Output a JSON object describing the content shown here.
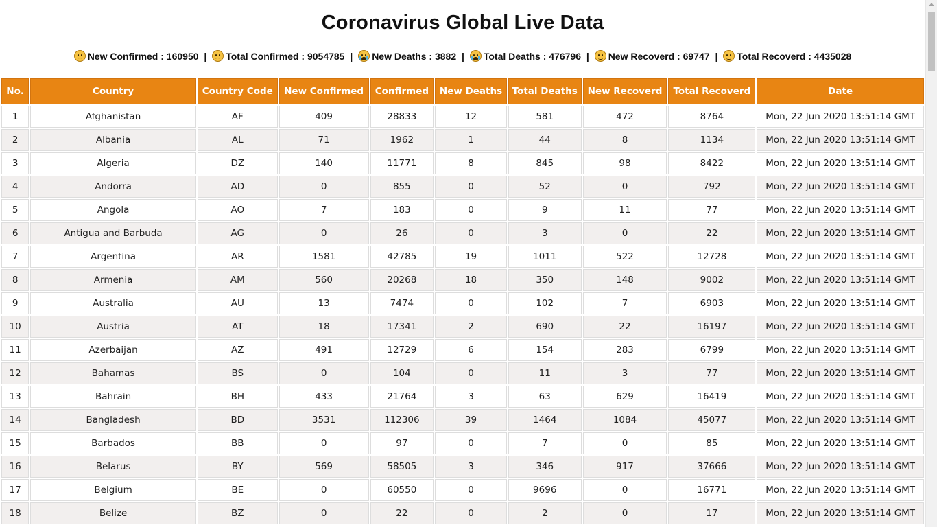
{
  "page": {
    "title": "Coronavirus Global Live Data"
  },
  "summary": {
    "items": [
      {
        "icon": "sad-face-icon",
        "label": "New Confirmed : 160950"
      },
      {
        "icon": "sad-face-icon",
        "label": "Total Confirmed : 9054785"
      },
      {
        "icon": "crying-face-icon",
        "label": "New Deaths : 3882"
      },
      {
        "icon": "crying-face-icon",
        "label": "Total Deaths : 476796"
      },
      {
        "icon": "smiling-face-icon",
        "label": "New Recoverd : 69747"
      },
      {
        "icon": "smiling-face-icon",
        "label": "Total Recoverd : 4435028"
      }
    ],
    "separator": "|"
  },
  "table": {
    "headers": [
      "No.",
      "Country",
      "Country Code",
      "New Confirmed",
      "Confirmed",
      "New Deaths",
      "Total Deaths",
      "New Recoverd",
      "Total Recoverd",
      "Date"
    ],
    "rows": [
      [
        "1",
        "Afghanistan",
        "AF",
        "409",
        "28833",
        "12",
        "581",
        "472",
        "8764",
        "Mon, 22 Jun 2020 13:51:14 GMT"
      ],
      [
        "2",
        "Albania",
        "AL",
        "71",
        "1962",
        "1",
        "44",
        "8",
        "1134",
        "Mon, 22 Jun 2020 13:51:14 GMT"
      ],
      [
        "3",
        "Algeria",
        "DZ",
        "140",
        "11771",
        "8",
        "845",
        "98",
        "8422",
        "Mon, 22 Jun 2020 13:51:14 GMT"
      ],
      [
        "4",
        "Andorra",
        "AD",
        "0",
        "855",
        "0",
        "52",
        "0",
        "792",
        "Mon, 22 Jun 2020 13:51:14 GMT"
      ],
      [
        "5",
        "Angola",
        "AO",
        "7",
        "183",
        "0",
        "9",
        "11",
        "77",
        "Mon, 22 Jun 2020 13:51:14 GMT"
      ],
      [
        "6",
        "Antigua and Barbuda",
        "AG",
        "0",
        "26",
        "0",
        "3",
        "0",
        "22",
        "Mon, 22 Jun 2020 13:51:14 GMT"
      ],
      [
        "7",
        "Argentina",
        "AR",
        "1581",
        "42785",
        "19",
        "1011",
        "522",
        "12728",
        "Mon, 22 Jun 2020 13:51:14 GMT"
      ],
      [
        "8",
        "Armenia",
        "AM",
        "560",
        "20268",
        "18",
        "350",
        "148",
        "9002",
        "Mon, 22 Jun 2020 13:51:14 GMT"
      ],
      [
        "9",
        "Australia",
        "AU",
        "13",
        "7474",
        "0",
        "102",
        "7",
        "6903",
        "Mon, 22 Jun 2020 13:51:14 GMT"
      ],
      [
        "10",
        "Austria",
        "AT",
        "18",
        "17341",
        "2",
        "690",
        "22",
        "16197",
        "Mon, 22 Jun 2020 13:51:14 GMT"
      ],
      [
        "11",
        "Azerbaijan",
        "AZ",
        "491",
        "12729",
        "6",
        "154",
        "283",
        "6799",
        "Mon, 22 Jun 2020 13:51:14 GMT"
      ],
      [
        "12",
        "Bahamas",
        "BS",
        "0",
        "104",
        "0",
        "11",
        "3",
        "77",
        "Mon, 22 Jun 2020 13:51:14 GMT"
      ],
      [
        "13",
        "Bahrain",
        "BH",
        "433",
        "21764",
        "3",
        "63",
        "629",
        "16419",
        "Mon, 22 Jun 2020 13:51:14 GMT"
      ],
      [
        "14",
        "Bangladesh",
        "BD",
        "3531",
        "112306",
        "39",
        "1464",
        "1084",
        "45077",
        "Mon, 22 Jun 2020 13:51:14 GMT"
      ],
      [
        "15",
        "Barbados",
        "BB",
        "0",
        "97",
        "0",
        "7",
        "0",
        "85",
        "Mon, 22 Jun 2020 13:51:14 GMT"
      ],
      [
        "16",
        "Belarus",
        "BY",
        "569",
        "58505",
        "3",
        "346",
        "917",
        "37666",
        "Mon, 22 Jun 2020 13:51:14 GMT"
      ],
      [
        "17",
        "Belgium",
        "BE",
        "0",
        "60550",
        "0",
        "9696",
        "0",
        "16771",
        "Mon, 22 Jun 2020 13:51:14 GMT"
      ],
      [
        "18",
        "Belize",
        "BZ",
        "0",
        "22",
        "0",
        "2",
        "0",
        "17",
        "Mon, 22 Jun 2020 13:51:14 GMT"
      ]
    ]
  },
  "colors": {
    "header_bg": "#e88513",
    "header_text": "#ffffff",
    "row_alt_bg": "#f2efee"
  }
}
